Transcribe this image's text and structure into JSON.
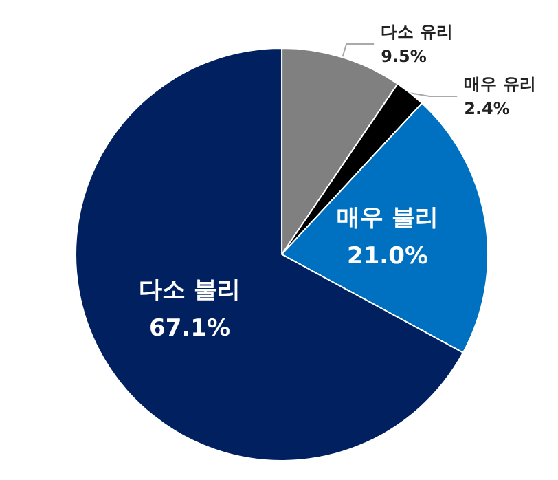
{
  "chart_data": {
    "type": "pie",
    "categories": [
      "다소 유리",
      "매우 유리",
      "매우 불리",
      "다소 불리"
    ],
    "values": [
      9.5,
      2.4,
      21.0,
      67.1
    ],
    "colors": [
      "#808080",
      "#000000",
      "#0070c0",
      "#002060"
    ],
    "value_labels": [
      "9.5%",
      "2.4%",
      "21.0%",
      "67.1%"
    ]
  }
}
